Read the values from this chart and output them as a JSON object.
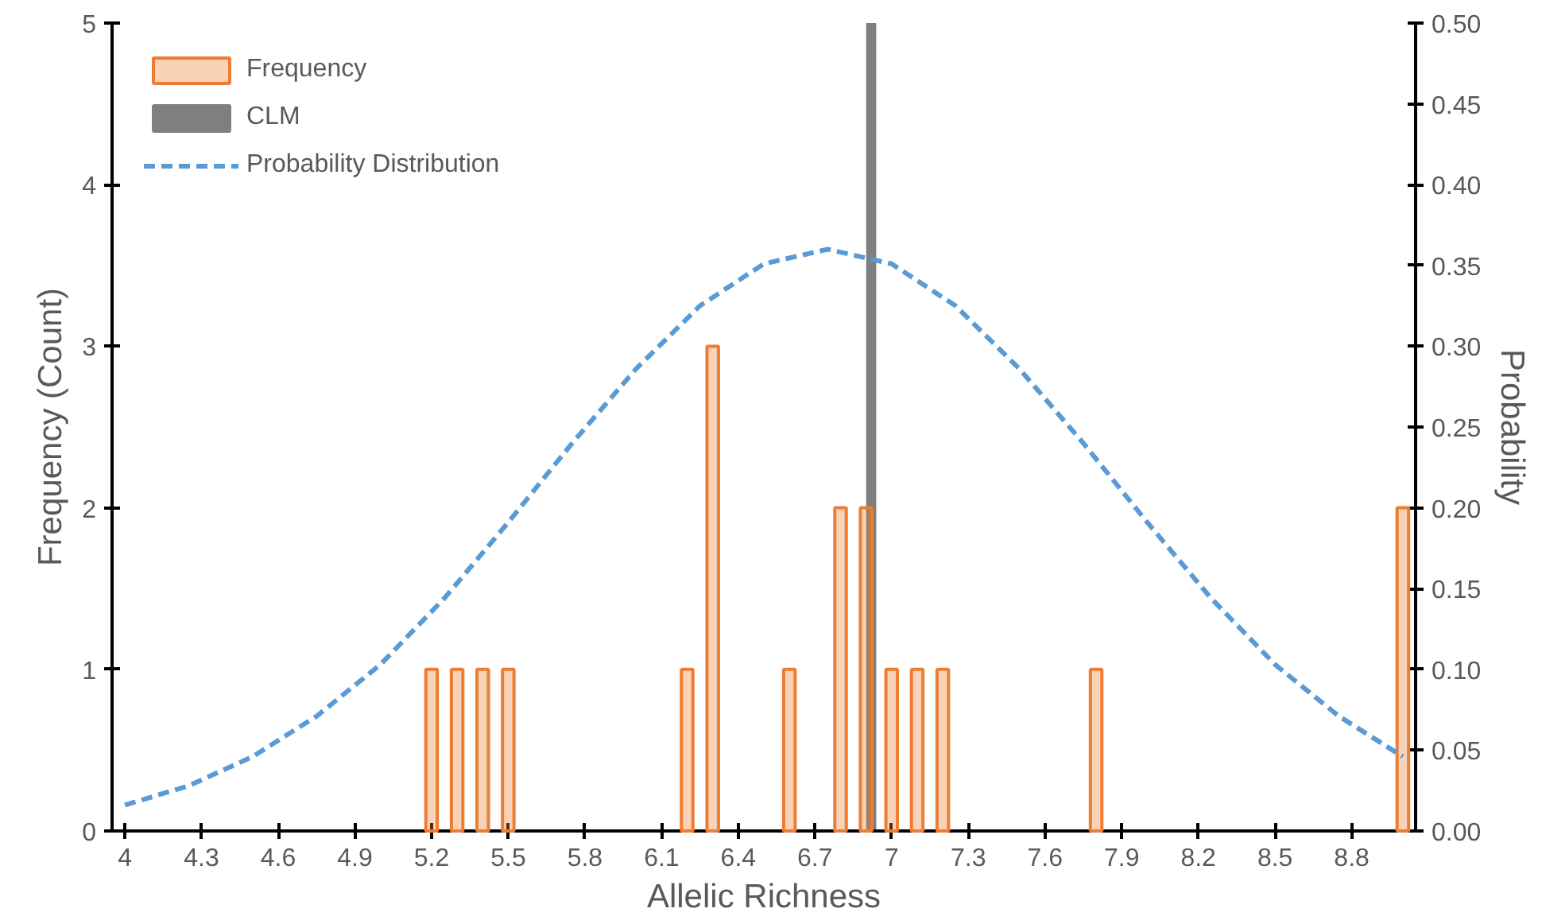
{
  "chart_data": {
    "type": "bar",
    "xlabel": "Allelic Richness",
    "ylabel": "Frequency (Count)",
    "y2label": "Probability",
    "xlim": [
      3.95,
      9.05
    ],
    "xticks": [
      4,
      4.3,
      4.6,
      4.9,
      5.2,
      5.5,
      5.8,
      6.1,
      6.4,
      6.7,
      7,
      7.3,
      7.6,
      7.9,
      8.2,
      8.5,
      8.8
    ],
    "ylim": [
      0,
      5
    ],
    "yticks": [
      0,
      1,
      2,
      3,
      4,
      5
    ],
    "y2lim": [
      0,
      0.5
    ],
    "y2ticks": [
      {
        "value": 0,
        "label": "0.00"
      },
      {
        "value": 0.05,
        "label": "0.05"
      },
      {
        "value": 0.1,
        "label": "0.10"
      },
      {
        "value": 0.15,
        "label": "0.15"
      },
      {
        "value": 0.2,
        "label": "0.20"
      },
      {
        "value": 0.25,
        "label": "0.25"
      },
      {
        "value": 0.3,
        "label": "0.30"
      },
      {
        "value": 0.35,
        "label": "0.35"
      },
      {
        "value": 0.4,
        "label": "0.40"
      },
      {
        "value": 0.45,
        "label": "0.45"
      },
      {
        "value": 0.5,
        "label": "0.50"
      }
    ],
    "grid": false,
    "legend": "top left",
    "series": [
      {
        "name": "Frequency",
        "color": "#ed7d31",
        "x": [
          5.2,
          5.3,
          5.4,
          5.5,
          6.2,
          6.3,
          6.6,
          6.8,
          6.9,
          7.0,
          7.1,
          7.2,
          7.8,
          9.0
        ],
        "values": [
          1,
          1,
          1,
          1,
          1,
          3,
          1,
          2,
          2,
          1,
          1,
          1,
          1,
          2
        ]
      },
      {
        "name": "CLM",
        "type": "bar",
        "color": "#7f7f7f",
        "x": [
          6.92
        ],
        "values": [
          5
        ]
      },
      {
        "name": "Probability Distribution",
        "type": "line",
        "axis": "y2",
        "color": "#5b9bd5",
        "line_style": "dashed",
        "marker": "none",
        "x": [
          4.0,
          4.25,
          4.5,
          4.75,
          5.0,
          5.25,
          5.5,
          5.75,
          6.0,
          6.25,
          6.5,
          6.75,
          7.0,
          7.25,
          7.5,
          7.75,
          8.0,
          8.25,
          8.5,
          8.75,
          9.0
        ],
        "values": [
          0.016,
          0.028,
          0.046,
          0.071,
          0.103,
          0.144,
          0.191,
          0.24,
          0.286,
          0.325,
          0.351,
          0.36,
          0.351,
          0.325,
          0.286,
          0.24,
          0.191,
          0.144,
          0.103,
          0.071,
          0.046
        ]
      }
    ]
  }
}
